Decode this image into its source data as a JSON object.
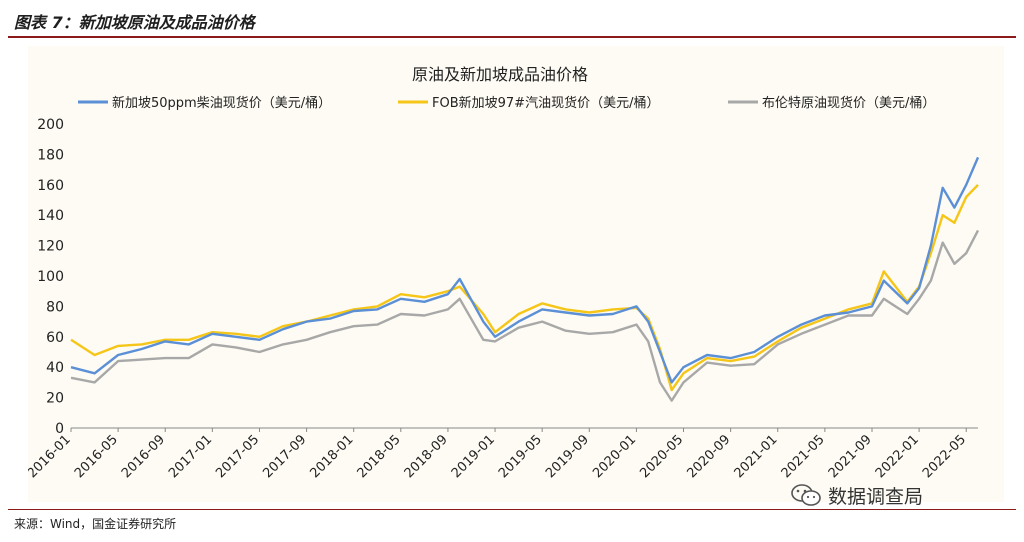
{
  "header": {
    "title": "图表 7：新加坡原油及成品油价格"
  },
  "footer": {
    "source": "来源：Wind，国金证券研究所",
    "watermark": "数据调查局"
  },
  "chart_data": {
    "type": "line",
    "title": "原油及新加坡成品油价格",
    "ylim": [
      0,
      200
    ],
    "yticks": [
      0,
      20,
      40,
      60,
      80,
      100,
      120,
      140,
      160,
      180,
      200
    ],
    "xticks": [
      "2016-01",
      "2016-05",
      "2016-09",
      "2017-01",
      "2017-05",
      "2017-09",
      "2018-01",
      "2018-05",
      "2018-09",
      "2019-01",
      "2019-05",
      "2019-09",
      "2020-01",
      "2020-05",
      "2020-09",
      "2021-01",
      "2021-05",
      "2021-09",
      "2022-01",
      "2022-05"
    ],
    "grid": false,
    "legend_position": "top",
    "x": [
      "2016-01",
      "2016-03",
      "2016-05",
      "2016-07",
      "2016-09",
      "2016-11",
      "2017-01",
      "2017-03",
      "2017-05",
      "2017-07",
      "2017-09",
      "2017-11",
      "2018-01",
      "2018-03",
      "2018-05",
      "2018-07",
      "2018-09",
      "2018-10",
      "2018-12",
      "2019-01",
      "2019-03",
      "2019-05",
      "2019-07",
      "2019-09",
      "2019-11",
      "2020-01",
      "2020-02",
      "2020-03",
      "2020-04",
      "2020-05",
      "2020-07",
      "2020-09",
      "2020-11",
      "2021-01",
      "2021-03",
      "2021-05",
      "2021-07",
      "2021-09",
      "2021-10",
      "2021-12",
      "2022-01",
      "2022-02",
      "2022-03",
      "2022-04",
      "2022-05",
      "2022-06"
    ],
    "series": [
      {
        "name": "新加坡50ppm柴油现货价（美元/桶）",
        "color": "#5b8fd6",
        "values": [
          40,
          36,
          48,
          52,
          57,
          55,
          62,
          60,
          58,
          65,
          70,
          72,
          77,
          78,
          85,
          83,
          88,
          98,
          70,
          60,
          70,
          78,
          76,
          74,
          75,
          80,
          70,
          50,
          30,
          40,
          48,
          46,
          50,
          60,
          68,
          74,
          76,
          80,
          97,
          82,
          92,
          120,
          158,
          145,
          160,
          178
        ]
      },
      {
        "name": "FOB新加坡97#汽油现货价（美元/桶）",
        "color": "#f5c518",
        "values": [
          58,
          48,
          54,
          55,
          58,
          58,
          63,
          62,
          60,
          67,
          70,
          74,
          78,
          80,
          88,
          86,
          90,
          93,
          75,
          63,
          75,
          82,
          78,
          76,
          78,
          79,
          72,
          52,
          25,
          36,
          46,
          44,
          47,
          57,
          66,
          72,
          78,
          82,
          103,
          83,
          93,
          115,
          140,
          135,
          152,
          160
        ]
      },
      {
        "name": "布伦特原油现货价（美元/桶）",
        "color": "#a8a8a8",
        "values": [
          33,
          30,
          44,
          45,
          46,
          46,
          55,
          53,
          50,
          55,
          58,
          63,
          67,
          68,
          75,
          74,
          78,
          85,
          58,
          57,
          66,
          70,
          64,
          62,
          63,
          68,
          57,
          30,
          18,
          30,
          43,
          41,
          42,
          55,
          62,
          68,
          74,
          74,
          85,
          75,
          85,
          97,
          122,
          108,
          115,
          130
        ]
      }
    ]
  }
}
